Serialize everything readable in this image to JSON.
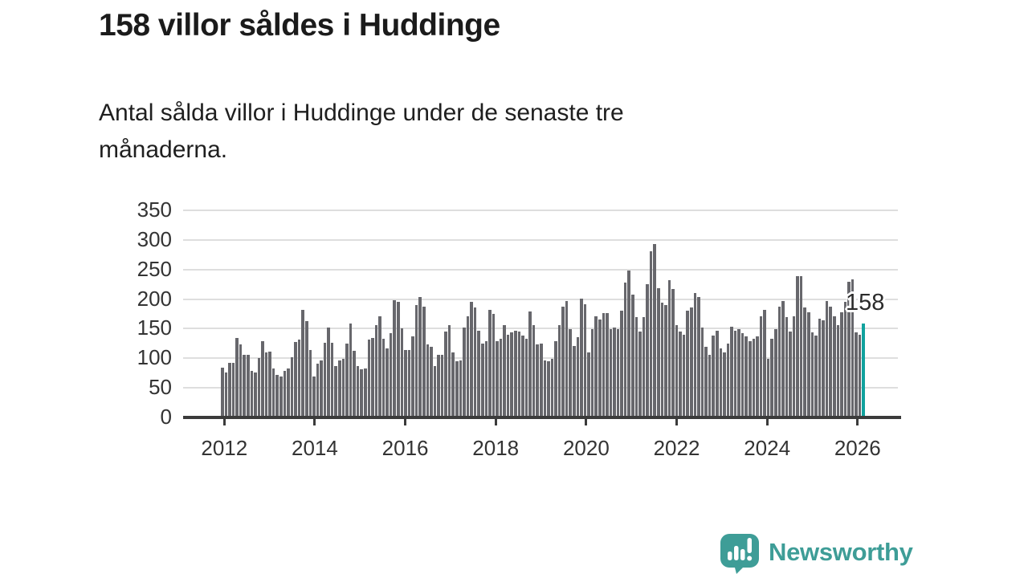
{
  "header": {
    "title": "158 villor såldes i Huddinge",
    "subtitle_line1": "Antal sålda villor i Huddinge under de senaste tre",
    "subtitle_line2": "månaderna."
  },
  "footer": {
    "brand": "Newsworthy",
    "logo_icon": "newsworthy-speech-bubble-chart-icon"
  },
  "chart_data": {
    "type": "bar",
    "title": "158 villor såldes i Huddinge",
    "subtitle": "Antal sålda villor i Huddinge under de senaste tre månaderna.",
    "frequency": "monthly",
    "x_start_year": 2012,
    "xlabel": "",
    "ylabel": "",
    "ylim": [
      0,
      350
    ],
    "grid": true,
    "y_ticks": [
      0,
      50,
      100,
      150,
      200,
      250,
      300,
      350
    ],
    "x_ticks": [
      2012,
      2014,
      2016,
      2018,
      2020,
      2022,
      2024,
      2026
    ],
    "bar_color": "#67676c",
    "highlight_color": "#10a29e",
    "last_value_label": "158",
    "highlight_last": true,
    "values": [
      83,
      74,
      91,
      91,
      133,
      122,
      104,
      104,
      77,
      74,
      99,
      128,
      108,
      110,
      82,
      70,
      68,
      77,
      81,
      100,
      126,
      130,
      181,
      162,
      113,
      68,
      90,
      95,
      125,
      150,
      125,
      86,
      95,
      98,
      124,
      157,
      111,
      86,
      80,
      82,
      130,
      133,
      154,
      170,
      132,
      115,
      141,
      197,
      194,
      149,
      113,
      113,
      136,
      188,
      202,
      186,
      122,
      118,
      86,
      104,
      105,
      144,
      155,
      108,
      94,
      95,
      150,
      170,
      194,
      185,
      145,
      123,
      127,
      181,
      174,
      127,
      132,
      155,
      139,
      143,
      145,
      144,
      137,
      131,
      178,
      155,
      122,
      123,
      95,
      94,
      98,
      127,
      155,
      186,
      195,
      148,
      119,
      135,
      199,
      190,
      109,
      148,
      169,
      164,
      175,
      175,
      148,
      150,
      148,
      179,
      226,
      247,
      206,
      168,
      144,
      168,
      224,
      280,
      292,
      217,
      193,
      189,
      231,
      216,
      154,
      144,
      139,
      179,
      184,
      209,
      202,
      150,
      118,
      105,
      137,
      145,
      116,
      109,
      124,
      152,
      145,
      148,
      141,
      136,
      128,
      132,
      136,
      170,
      181,
      98,
      132,
      148,
      186,
      196,
      168,
      144,
      170,
      237,
      238,
      184,
      177,
      143,
      137,
      166,
      163,
      196,
      186,
      170,
      154,
      177,
      194,
      228,
      232,
      143,
      138,
      158
    ]
  }
}
